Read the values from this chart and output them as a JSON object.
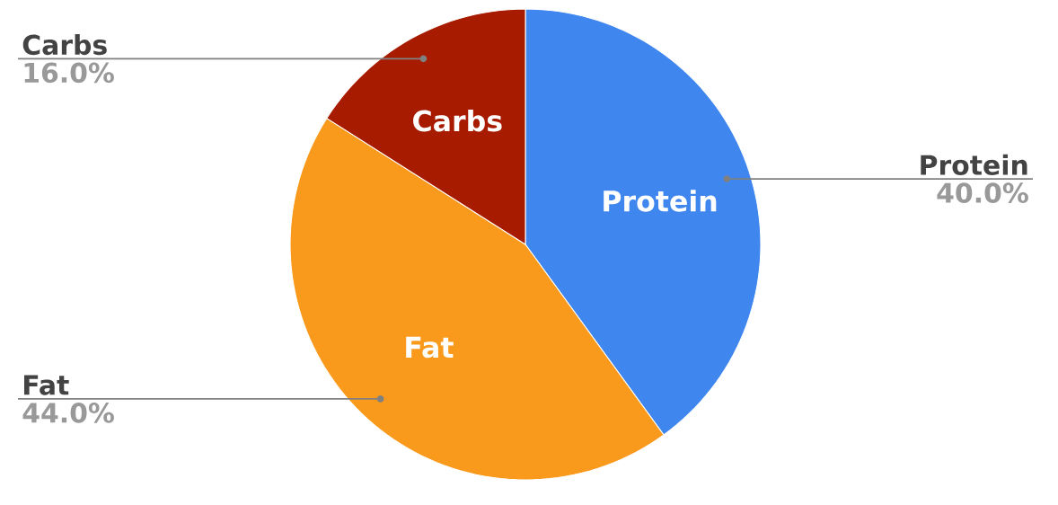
{
  "chart_data": {
    "type": "pie",
    "categories": [
      "Protein",
      "Fat",
      "Carbs"
    ],
    "values": [
      40,
      44,
      16
    ],
    "colors": [
      "#3f86ef",
      "#fa9a1d",
      "#a71c00"
    ],
    "value_labels": [
      "40.0%",
      "44.0%",
      "16.0%"
    ]
  }
}
